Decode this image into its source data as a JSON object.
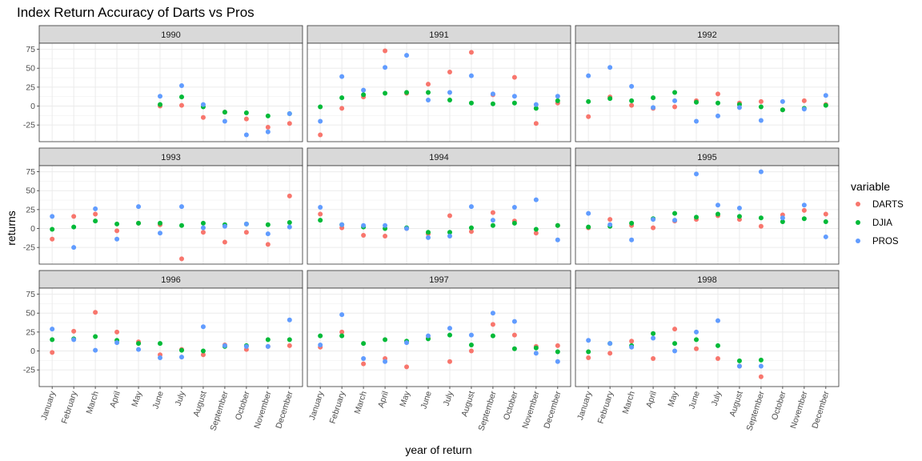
{
  "chart_data": {
    "type": "scatter",
    "title": "Index Return Accuracy of Darts vs Pros",
    "xlabel": "year of return",
    "ylabel": "returns",
    "categories": [
      "January",
      "February",
      "March",
      "April",
      "May",
      "June",
      "July",
      "August",
      "September",
      "October",
      "November",
      "December"
    ],
    "y_ticks": [
      -25,
      0,
      25,
      50,
      75
    ],
    "y_tick_labels": [
      "-25",
      "0",
      "25",
      "50",
      "75"
    ],
    "ylim": [
      -47,
      83
    ],
    "grid": true,
    "legend": {
      "title": "variable",
      "position": "right",
      "entries": [
        {
          "name": "DARTS",
          "color": "#F8766D"
        },
        {
          "name": "DJIA",
          "color": "#00BA38"
        },
        {
          "name": "PROS",
          "color": "#619CFF"
        }
      ]
    },
    "facets": [
      {
        "label": "1990",
        "series": {
          "DARTS": [
            null,
            null,
            null,
            null,
            null,
            0,
            1,
            -15,
            -8,
            -17,
            -28,
            -23
          ],
          "DJIA": [
            null,
            null,
            null,
            null,
            null,
            2,
            12,
            -1,
            -8,
            -9,
            -13,
            -10
          ],
          "PROS": [
            null,
            null,
            null,
            null,
            null,
            13,
            27,
            2,
            -20,
            -38,
            -34,
            -10
          ]
        }
      },
      {
        "label": "1991",
        "series": {
          "DARTS": [
            -38,
            -3,
            12,
            73,
            17,
            29,
            45,
            71,
            15,
            38,
            -23,
            4
          ],
          "DJIA": [
            -1,
            11,
            15,
            17,
            18,
            18,
            8,
            4,
            3,
            4,
            -3,
            7
          ],
          "PROS": [
            -20,
            39,
            21,
            51,
            67,
            8,
            18,
            40,
            16,
            13,
            2,
            13
          ]
        }
      },
      {
        "label": "1992",
        "series": {
          "DARTS": [
            -14,
            12,
            1,
            -3,
            -1,
            7,
            16,
            4,
            6,
            -5,
            7,
            2
          ],
          "DJIA": [
            6,
            10,
            7,
            11,
            18,
            5,
            4,
            2,
            -1,
            -5,
            -3,
            1
          ],
          "PROS": [
            40,
            51,
            26,
            -2,
            7,
            -20,
            -13,
            -2,
            -19,
            6,
            -4,
            14
          ]
        }
      },
      {
        "label": "1993",
        "series": {
          "DARTS": [
            -14,
            16,
            19,
            -3,
            7,
            5,
            -40,
            -5,
            -18,
            -5,
            -21,
            43
          ],
          "DJIA": [
            -1,
            2,
            10,
            6,
            7,
            7,
            4,
            7,
            5,
            6,
            5,
            8
          ],
          "PROS": [
            16,
            -25,
            26,
            -14,
            29,
            -6,
            29,
            1,
            3,
            6,
            -7,
            2
          ]
        }
      },
      {
        "label": "1994",
        "series": {
          "DARTS": [
            19,
            1,
            -9,
            -10,
            0,
            -7,
            17,
            -4,
            21,
            10,
            -6,
            4
          ],
          "DJIA": [
            11,
            5,
            2,
            0,
            1,
            -5,
            -5,
            1,
            4,
            7,
            -1,
            4
          ],
          "PROS": [
            28,
            5,
            4,
            4,
            0,
            -12,
            -10,
            29,
            11,
            28,
            38,
            -15
          ]
        }
      },
      {
        "label": "1995",
        "series": {
          "DARTS": [
            1,
            12,
            4,
            1,
            10,
            12,
            17,
            12,
            3,
            18,
            24,
            19
          ],
          "DJIA": [
            2,
            3,
            7,
            13,
            20,
            15,
            19,
            16,
            14,
            9,
            13,
            9
          ],
          "PROS": [
            20,
            5,
            -15,
            12,
            11,
            72,
            31,
            27,
            75,
            14,
            31,
            -11
          ]
        }
      },
      {
        "label": "1996",
        "series": {
          "DARTS": [
            -2,
            26,
            51,
            25,
            12,
            -5,
            2,
            -5,
            8,
            2,
            6,
            7
          ],
          "DJIA": [
            15,
            16,
            19,
            14,
            10,
            10,
            1,
            0,
            6,
            7,
            15,
            15
          ],
          "PROS": [
            29,
            15,
            1,
            11,
            2,
            -9,
            -8,
            32,
            7,
            6,
            6,
            41
          ]
        }
      },
      {
        "label": "1997",
        "series": {
          "DARTS": [
            5,
            25,
            -17,
            -10,
            -21,
            17,
            -14,
            0,
            35,
            21,
            6,
            7
          ],
          "DJIA": [
            20,
            20,
            10,
            15,
            13,
            16,
            21,
            8,
            20,
            3,
            4,
            -1
          ],
          "PROS": [
            8,
            48,
            -10,
            -14,
            11,
            20,
            30,
            21,
            50,
            39,
            -3,
            -14
          ]
        }
      },
      {
        "label": "1998",
        "series": {
          "DARTS": [
            -9,
            -3,
            13,
            -10,
            29,
            3,
            -10,
            -20,
            -34,
            null,
            null,
            null
          ],
          "DJIA": [
            -1,
            10,
            7,
            23,
            10,
            15,
            7,
            -13,
            -12,
            null,
            null,
            null
          ],
          "PROS": [
            14,
            10,
            5,
            17,
            0,
            25,
            40,
            -20,
            -20,
            null,
            null,
            null
          ]
        }
      }
    ]
  }
}
